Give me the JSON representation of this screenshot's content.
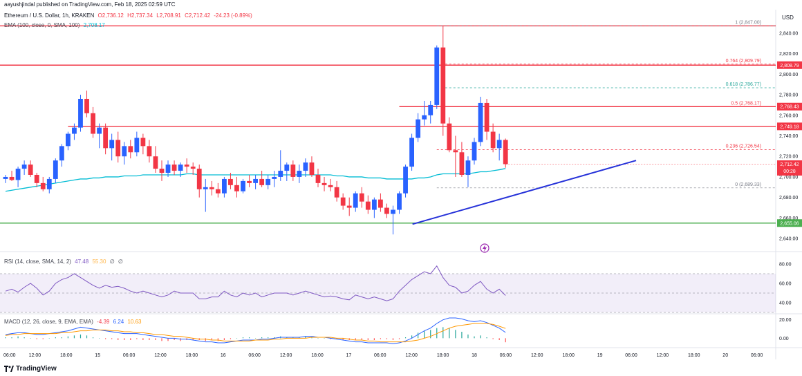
{
  "header": {
    "published": "aayushjindal published on TradingView.com, Feb 18, 2025 02:59 UTC",
    "symbol": "Ethereum / U.S. Dollar, 1h, KRAKEN",
    "ohlc": {
      "o": "O2,736.12",
      "h": "H2,737.34",
      "l": "L2,708.91",
      "c": "C2,712.42",
      "chg": "-24.23 (-0.89%)"
    },
    "ema_label": "EMA (100, close, 0, SMA, 100)",
    "ema_value": "2,708.17",
    "currency": "USD"
  },
  "rsi_header": {
    "label": "RSI (14, close, SMA, 14, 2)",
    "v1": "47.48",
    "v2": "55.30",
    "v3": "∅",
    "v4": "∅"
  },
  "macd_header": {
    "label": "MACD (12, 26, close, 9, EMA, EMA)",
    "v1": "-4.39",
    "v2": "6.24",
    "v3": "10.63"
  },
  "footer": {
    "brand": "TradingView"
  },
  "colors": {
    "up": "#2962ff",
    "down": "#f23645",
    "ema": "#00bcd4",
    "rsi": "#7e57c2",
    "signal": "#ff9800",
    "macd": "#2962ff",
    "resistance": "#f23645",
    "support": "#4caf50",
    "trendline": "#2632d9"
  },
  "chart_data": {
    "type": "candlestick",
    "instrument": "ETH/USD",
    "interval": "1h",
    "ylim": [
      2630,
      2850
    ],
    "y_ticks": [
      2640,
      2660,
      2680,
      2700,
      2720,
      2740,
      2760,
      2780,
      2800,
      2820,
      2840
    ],
    "y_tick_labels": [
      "2,640.00",
      "2,660.00",
      "2,680.00",
      "2,700.00",
      "2,720.00",
      "2,740.00",
      "2,760.00",
      "2,780.00",
      "2,800.00",
      "2,820.00",
      "2,840.00"
    ],
    "x_tick_labels": [
      "06:00",
      "12:00",
      "18:00",
      "15",
      "06:00",
      "12:00",
      "18:00",
      "16",
      "06:00",
      "12:00",
      "18:00",
      "17",
      "06:00",
      "12:00",
      "18:00",
      "18",
      "06:00",
      "12:00",
      "18:00",
      "19",
      "06:00",
      "12:00",
      "18:00",
      "20",
      "06:00"
    ],
    "candles": [
      [
        2698,
        2702,
        2694,
        2700
      ],
      [
        2700,
        2706,
        2696,
        2697
      ],
      [
        2697,
        2710,
        2690,
        2708
      ],
      [
        2708,
        2716,
        2702,
        2712
      ],
      [
        2712,
        2716,
        2700,
        2702
      ],
      [
        2702,
        2704,
        2690,
        2694
      ],
      [
        2694,
        2700,
        2686,
        2688
      ],
      [
        2688,
        2700,
        2684,
        2698
      ],
      [
        2698,
        2718,
        2694,
        2716
      ],
      [
        2716,
        2732,
        2710,
        2730
      ],
      [
        2730,
        2744,
        2726,
        2742
      ],
      [
        2742,
        2752,
        2736,
        2748
      ],
      [
        2748,
        2780,
        2744,
        2776
      ],
      [
        2776,
        2784,
        2758,
        2762
      ],
      [
        2762,
        2768,
        2738,
        2742
      ],
      [
        2742,
        2752,
        2728,
        2748
      ],
      [
        2748,
        2752,
        2722,
        2728
      ],
      [
        2728,
        2742,
        2716,
        2736
      ],
      [
        2736,
        2744,
        2714,
        2720
      ],
      [
        2720,
        2734,
        2712,
        2730
      ],
      [
        2730,
        2736,
        2718,
        2724
      ],
      [
        2724,
        2744,
        2720,
        2738
      ],
      [
        2738,
        2742,
        2722,
        2730
      ],
      [
        2730,
        2736,
        2714,
        2720
      ],
      [
        2720,
        2730,
        2704,
        2708
      ],
      [
        2708,
        2716,
        2696,
        2704
      ],
      [
        2704,
        2716,
        2700,
        2712
      ],
      [
        2712,
        2716,
        2702,
        2706
      ],
      [
        2706,
        2714,
        2700,
        2712
      ],
      [
        2712,
        2718,
        2704,
        2710
      ],
      [
        2710,
        2714,
        2702,
        2708
      ],
      [
        2708,
        2712,
        2680,
        2688
      ],
      [
        2688,
        2698,
        2666,
        2690
      ],
      [
        2690,
        2696,
        2682,
        2688
      ],
      [
        2688,
        2694,
        2680,
        2684
      ],
      [
        2684,
        2700,
        2680,
        2698
      ],
      [
        2698,
        2704,
        2688,
        2692
      ],
      [
        2692,
        2700,
        2680,
        2686
      ],
      [
        2686,
        2698,
        2684,
        2696
      ],
      [
        2696,
        2702,
        2690,
        2694
      ],
      [
        2694,
        2702,
        2688,
        2698
      ],
      [
        2698,
        2706,
        2690,
        2692
      ],
      [
        2692,
        2702,
        2688,
        2698
      ],
      [
        2698,
        2706,
        2690,
        2700
      ],
      [
        2700,
        2726,
        2696,
        2706
      ],
      [
        2706,
        2714,
        2696,
        2712
      ],
      [
        2712,
        2716,
        2696,
        2700
      ],
      [
        2700,
        2712,
        2694,
        2706
      ],
      [
        2706,
        2718,
        2700,
        2714
      ],
      [
        2714,
        2720,
        2700,
        2702
      ],
      [
        2702,
        2708,
        2690,
        2694
      ],
      [
        2694,
        2700,
        2686,
        2692
      ],
      [
        2692,
        2698,
        2686,
        2690
      ],
      [
        2690,
        2696,
        2676,
        2680
      ],
      [
        2680,
        2684,
        2668,
        2672
      ],
      [
        2672,
        2680,
        2662,
        2670
      ],
      [
        2670,
        2686,
        2666,
        2684
      ],
      [
        2684,
        2690,
        2670,
        2676
      ],
      [
        2676,
        2682,
        2664,
        2668
      ],
      [
        2668,
        2680,
        2660,
        2678
      ],
      [
        2678,
        2684,
        2666,
        2670
      ],
      [
        2670,
        2674,
        2660,
        2664
      ],
      [
        2664,
        2672,
        2644,
        2668
      ],
      [
        2668,
        2686,
        2664,
        2684
      ],
      [
        2684,
        2712,
        2680,
        2710
      ],
      [
        2710,
        2742,
        2706,
        2738
      ],
      [
        2738,
        2762,
        2734,
        2756
      ],
      [
        2756,
        2774,
        2750,
        2760
      ],
      [
        2760,
        2774,
        2752,
        2770
      ],
      [
        2770,
        2828,
        2766,
        2826
      ],
      [
        2826,
        2847,
        2740,
        2752
      ],
      [
        2752,
        2758,
        2724,
        2726
      ],
      [
        2726,
        2740,
        2700,
        2724
      ],
      [
        2724,
        2734,
        2700,
        2702
      ],
      [
        2702,
        2720,
        2690,
        2716
      ],
      [
        2716,
        2738,
        2712,
        2734
      ],
      [
        2734,
        2778,
        2730,
        2772
      ],
      [
        2772,
        2776,
        2736,
        2744
      ],
      [
        2744,
        2752,
        2724,
        2728
      ],
      [
        2728,
        2742,
        2716,
        2736
      ],
      [
        2736,
        2737.34,
        2708.91,
        2712.42
      ]
    ],
    "ema_100": [
      2686,
      2687,
      2688,
      2689,
      2690,
      2691,
      2692,
      2693,
      2694,
      2695,
      2696,
      2697,
      2698,
      2698,
      2699,
      2699,
      2700,
      2700,
      2700,
      2701,
      2701,
      2701,
      2702,
      2702,
      2702,
      2702,
      2702,
      2702,
      2702,
      2703,
      2703,
      2702,
      2702,
      2702,
      2702,
      2702,
      2702,
      2702,
      2702,
      2702,
      2702,
      2702,
      2702,
      2702,
      2702,
      2702,
      2702,
      2702,
      2702,
      2702,
      2702,
      2702,
      2702,
      2701,
      2701,
      2700,
      2700,
      2700,
      2699,
      2699,
      2699,
      2698,
      2698,
      2698,
      2698,
      2698,
      2699,
      2699,
      2700,
      2702,
      2703,
      2703,
      2703,
      2703,
      2703,
      2704,
      2705,
      2705,
      2706,
      2707,
      2708.17
    ],
    "fib_levels": [
      {
        "label": "1 (2,847.00)",
        "value": 2847.0
      },
      {
        "label": "0.764 (2,809.79)",
        "value": 2809.79
      },
      {
        "label": "0.618 (2,786.77)",
        "value": 2786.77
      },
      {
        "label": "0.5 (2,768.17)",
        "value": 2768.17
      },
      {
        "label": "0.236 (2,726.54)",
        "value": 2726.54
      },
      {
        "label": "0 (2,689.33)",
        "value": 2689.33
      }
    ],
    "horizontal_levels": [
      {
        "value": 2847.0,
        "color": "#f23645"
      },
      {
        "value": 2808.79,
        "label": "2,808.79",
        "color": "#f23645"
      },
      {
        "value": 2768.43,
        "label": "2,768.43",
        "color": "#f23645",
        "from_bar": 63
      },
      {
        "value": 2749.18,
        "label": "2,749.18",
        "color": "#f23645",
        "from_bar": 10
      },
      {
        "value": 2655.06,
        "label": "2,655.06",
        "color": "#4caf50"
      }
    ],
    "last_price": {
      "label": "2,712.42",
      "countdown": "00:28"
    },
    "trendline": {
      "from": [
        66,
        2654
      ],
      "to": [
        100,
        2716
      ]
    },
    "rsi": {
      "ylim": [
        30,
        90
      ],
      "ticks": [
        40,
        60,
        80
      ],
      "tick_labels": [
        "40.00",
        "60.00",
        "80.00"
      ],
      "band": [
        30,
        70
      ],
      "values": [
        52,
        54,
        51,
        56,
        60,
        55,
        48,
        52,
        60,
        64,
        66,
        70,
        66,
        62,
        58,
        55,
        58,
        56,
        57,
        55,
        52,
        50,
        52,
        50,
        48,
        46,
        48,
        52,
        50,
        50,
        50,
        44,
        44,
        46,
        46,
        52,
        48,
        46,
        50,
        48,
        50,
        46,
        48,
        50,
        50,
        50,
        48,
        50,
        52,
        50,
        48,
        46,
        47,
        46,
        44,
        43,
        48,
        46,
        44,
        46,
        44,
        42,
        44,
        52,
        58,
        64,
        68,
        72,
        70,
        78,
        66,
        58,
        56,
        50,
        52,
        58,
        62,
        54,
        50,
        54,
        47.48
      ]
    },
    "macd": {
      "ylim": [
        -8,
        25
      ],
      "ticks": [
        0,
        20
      ],
      "tick_labels": [
        "0.00",
        "20.00"
      ],
      "macd": [
        4,
        5,
        6,
        6,
        5,
        4,
        4,
        5,
        6,
        7,
        8,
        10,
        12,
        11,
        10,
        9,
        8,
        7,
        6,
        5,
        5,
        5,
        4,
        3,
        2,
        1,
        0,
        0,
        -1,
        -1,
        -2,
        -3,
        -4,
        -4,
        -5,
        -5,
        -4,
        -3,
        -2,
        -2,
        -2,
        -1,
        -1,
        0,
        1,
        1,
        1,
        1,
        2,
        2,
        1,
        1,
        0,
        -1,
        -2,
        -3,
        -4,
        -4,
        -5,
        -5,
        -5,
        -5,
        -6,
        -5,
        -3,
        0,
        4,
        8,
        11,
        16,
        20,
        22,
        22,
        21,
        19,
        18,
        19,
        17,
        14,
        11,
        6.24
      ],
      "signal": [
        3,
        4,
        4,
        5,
        5,
        5,
        5,
        5,
        5,
        6,
        6,
        7,
        8,
        8,
        9,
        9,
        9,
        8,
        8,
        7,
        7,
        6,
        6,
        5,
        4,
        4,
        3,
        2,
        2,
        1,
        0,
        -1,
        -1,
        -2,
        -2,
        -3,
        -3,
        -3,
        -3,
        -3,
        -2,
        -2,
        -2,
        -1,
        -1,
        0,
        0,
        0,
        0,
        1,
        1,
        1,
        1,
        0,
        0,
        -1,
        -2,
        -2,
        -3,
        -3,
        -4,
        -4,
        -4,
        -4,
        -4,
        -3,
        -2,
        0,
        2,
        5,
        8,
        11,
        13,
        14,
        15,
        16,
        16,
        16,
        15,
        13,
        10.63
      ],
      "hist": [
        1,
        1,
        2,
        1,
        0,
        -1,
        -1,
        0,
        1,
        1,
        2,
        3,
        4,
        3,
        1,
        0,
        -1,
        -1,
        -2,
        -2,
        -2,
        -1,
        -2,
        -2,
        -2,
        -3,
        -3,
        -2,
        -3,
        -2,
        -2,
        -2,
        -3,
        -2,
        -3,
        -2,
        -1,
        0,
        1,
        1,
        0,
        1,
        1,
        1,
        2,
        1,
        1,
        1,
        2,
        1,
        0,
        0,
        -1,
        -1,
        -2,
        -2,
        -2,
        -2,
        -2,
        -2,
        -1,
        -1,
        -2,
        -1,
        1,
        3,
        6,
        8,
        9,
        11,
        12,
        11,
        9,
        7,
        4,
        2,
        3,
        1,
        -1,
        -2,
        -4.39
      ]
    }
  }
}
